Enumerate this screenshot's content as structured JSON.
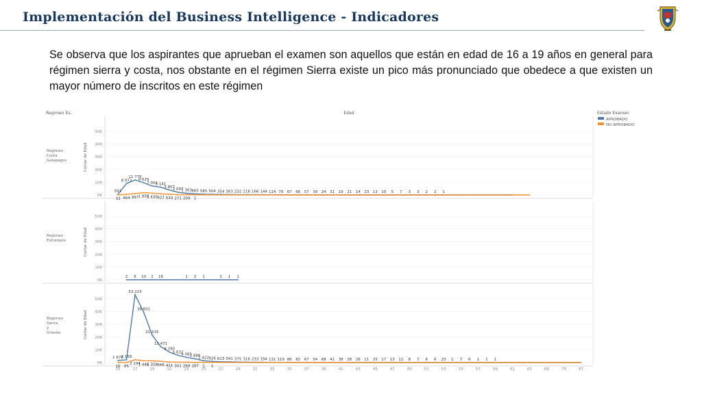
{
  "slide": {
    "title": "Implementación del Business Intelligence - Indicadores",
    "description": "Se observa que los aspirantes que aprueban el examen son aquellos que están en edad de 16 a 19 años en general para régimen sierra y costa, nos obstante en el régimen Sierra existe un pico más pronunciado que obedece a que existen un mayor número de inscritos en este régimen",
    "logo": "university-crest"
  },
  "chart_data": {
    "type": "line",
    "row_header": "Regimen Es..",
    "column_header": "Edad",
    "ylabel": "Contar de Edad",
    "y_ticks": [
      "0K",
      "10K",
      "20K",
      "30K",
      "40K",
      "50K"
    ],
    "ylim": [
      0,
      58000
    ],
    "xlim": [
      14,
      87
    ],
    "x_ticks": [
      15,
      17,
      19,
      21,
      23,
      25,
      27,
      29,
      31,
      33,
      35,
      37,
      39,
      41,
      43,
      45,
      47,
      49,
      51,
      53,
      55,
      57,
      59,
      61,
      63,
      66,
      70,
      87
    ],
    "legend": {
      "title": "Estado Examen",
      "position": "top-right",
      "items": [
        {
          "name": "APROBADO",
          "color": "#4e79a7"
        },
        {
          "name": "NO APROBADO",
          "color": "#f28e2b"
        }
      ]
    },
    "panels": [
      {
        "label": "Regimen Costa Galapagos",
        "series": [
          {
            "name": "APROBADO",
            "x": [
              15,
              16,
              17,
              18,
              19,
              20,
              21,
              22,
              23,
              24,
              25,
              26,
              27,
              28,
              29,
              30,
              31,
              32,
              33,
              34,
              35,
              36,
              37,
              38,
              39,
              40,
              41,
              42,
              43,
              44,
              45,
              46,
              47,
              48,
              49,
              50,
              51,
              52,
              53,
              54,
              55,
              56,
              57,
              58,
              59,
              60,
              61
            ],
            "values": [
              551,
              8973,
              11776,
              9629,
              7001,
              6141,
              3857,
              2097,
              1363,
              865,
              585,
              504,
              354,
              303,
              232,
              216,
              166,
              144,
              114,
              79,
              67,
              66,
              57,
              39,
              24,
              31,
              19,
              21,
              14,
              23,
              13,
              10,
              5,
              7,
              3,
              3,
              2,
              2,
              2,
              1,
              1,
              1,
              1,
              1,
              1,
              1,
              1
            ],
            "labels": [
              "551",
              "8 973",
              "11 776",
              "9 629",
              "7 001",
              "6 141",
              "3 857",
              "2 097",
              "1 363",
              "865",
              "585",
              "504",
              "354",
              "303",
              "232",
              "216",
              "166",
              "144",
              "114",
              "79",
              "67",
              "66",
              "57",
              "39",
              "24",
              "31",
              "19",
              "21",
              "14",
              "23",
              "13",
              "10",
              "5",
              "7",
              "3",
              "3",
              "2",
              "2",
              "1"
            ]
          },
          {
            "name": "NO APROBADO",
            "x": [
              15,
              16,
              17,
              18,
              19,
              20,
              21,
              22,
              23,
              24,
              25,
              26,
              27,
              28,
              29,
              30,
              31,
              32,
              33,
              34,
              35,
              36,
              37,
              38,
              39,
              40,
              41,
              42,
              43,
              44,
              45,
              46,
              47,
              48,
              49,
              50,
              51,
              52,
              53,
              54,
              55,
              56,
              57,
              58,
              59,
              60,
              61,
              62,
              63
            ],
            "values": [
              33,
              464,
              997,
              1850,
              1430,
              927,
              533,
              271,
              209,
              150,
              120,
              95,
              80,
              65,
              55,
              45,
              40,
              35,
              30,
              25,
              20,
              18,
              16,
              14,
              12,
              10,
              9,
              8,
              7,
              6,
              5,
              5,
              4,
              4,
              3,
              3,
              3,
              2,
              2,
              2,
              2,
              2,
              1,
              1,
              1,
              1,
              1,
              1,
              1
            ],
            "labels": [
              "33",
              "464",
              "997",
              "1 850",
              "1 430",
              "927",
              "533",
              "271",
              "209",
              "1"
            ]
          }
        ]
      },
      {
        "label": "Regimen Extranjero",
        "series": [
          {
            "name": "APROBADO",
            "x": [
              16,
              17,
              18,
              19,
              20,
              23,
              24,
              25,
              27,
              28,
              29
            ],
            "values": [
              2,
              6,
              10,
              2,
              16,
              1,
              2,
              1,
              2,
              1,
              1
            ],
            "labels": [
              "2",
              "6",
              "10",
              "2",
              "16",
              "1",
              "2",
              "1",
              "2",
              "1",
              "1"
            ]
          }
        ]
      },
      {
        "label": "Regimen Sierra y Oriente",
        "series": [
          {
            "name": "APROBADO",
            "x": [
              15,
              16,
              17,
              18,
              19,
              20,
              21,
              22,
              23,
              24,
              25,
              26,
              27,
              28,
              29,
              30,
              31,
              32,
              33,
              34,
              35,
              36,
              37,
              38,
              39,
              40,
              41,
              42,
              43,
              44,
              45,
              46,
              47,
              48,
              49,
              50,
              51,
              52,
              53,
              54,
              55,
              56,
              57,
              58,
              59,
              60,
              61,
              63,
              66,
              70,
              87
            ],
            "values": [
              1676,
              2158,
              53223,
              39601,
              21535,
              12471,
              8290,
              5632,
              4065,
              2886,
              1422,
              926,
              623,
              541,
              375,
              316,
              233,
              194,
              131,
              119,
              86,
              82,
              67,
              54,
              68,
              41,
              38,
              28,
              26,
              11,
              25,
              17,
              13,
              12,
              8,
              7,
              6,
              6,
              23,
              1,
              7,
              1,
              1,
              1,
              1,
              1,
              1,
              1,
              6,
              1,
              1
            ],
            "labels": [
              "1 676",
              "2 158",
              "53 223",
              "39 601",
              "21 535",
              "12 471",
              "8 290",
              "5 632",
              "4 065",
              "2 886",
              "1 422",
              "926",
              "623",
              "541",
              "375",
              "316",
              "233",
              "194",
              "131",
              "119",
              "86",
              "82",
              "67",
              "54",
              "68",
              "41",
              "38",
              "28",
              "26",
              "11",
              "25",
              "17",
              "13",
              "12",
              "8",
              "7",
              "6",
              "6",
              "23",
              "1",
              "7",
              "6",
              "1",
              "1",
              "1"
            ]
          },
          {
            "name": "NO APROBADO",
            "x": [
              15,
              16,
              17,
              18,
              19,
              20,
              21,
              22,
              23,
              24,
              25,
              26,
              27,
              28,
              29,
              30,
              31,
              32,
              33,
              34,
              35,
              36,
              37,
              38,
              39,
              40,
              41,
              42,
              43,
              44,
              45,
              46,
              47,
              48,
              49,
              50,
              51,
              52,
              53,
              54,
              55,
              56,
              57,
              58,
              59,
              60,
              61,
              63,
              66,
              70,
              87
            ],
            "values": [
              16,
              85,
              2194,
              1446,
              1358,
              948,
              411,
              301,
              269,
              187,
              150,
              120,
              100,
              80,
              65,
              55,
              45,
              40,
              35,
              30,
              25,
              20,
              18,
              16,
              14,
              12,
              10,
              9,
              8,
              7,
              6,
              5,
              5,
              4,
              4,
              3,
              3,
              3,
              2,
              2,
              2,
              2,
              1,
              1,
              1,
              1,
              1,
              1,
              1,
              1,
              1
            ],
            "labels": [
              "16",
              "85",
              "2 194",
              "1 446",
              "1 358",
              "948",
              "411",
              "301",
              "269",
              "187",
              "1",
              "1"
            ]
          }
        ]
      }
    ]
  }
}
